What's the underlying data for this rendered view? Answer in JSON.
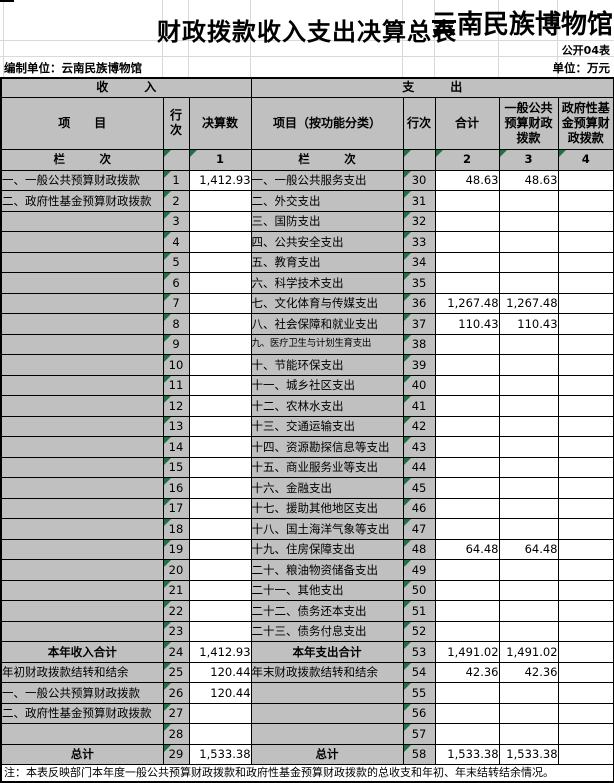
{
  "header": {
    "title": "财政拨款收入支出决算总表",
    "watermark": "云南民族博物馆",
    "form_no": "公开04表",
    "prepared_by": "编制单位：云南民族博物馆",
    "unit": "单位：万元"
  },
  "table": {
    "income_header": "收　　　入",
    "expenditure_header": "支　　　出",
    "columns": [
      "项　　目",
      "行次",
      "决算数",
      "项目（按功能分类）",
      "行次",
      "合计",
      "一般公共预算财政拨款",
      "政府性基金预算财政拨款"
    ],
    "lanci_left": "栏　　　次",
    "lanci_right": "栏　　　次",
    "col_nums": [
      "1",
      "2",
      "3",
      "4"
    ]
  },
  "rows": [
    {
      "left_label": "一、一般公共预算财政拨款",
      "left_no": "1",
      "left_val": "1,412.93",
      "right_label": "一、一般公共服务支出",
      "right_no": "30",
      "val_total": "48.63",
      "val_general": "48.63",
      "val_gov": ""
    },
    {
      "left_label": "二、政府性基金预算财政拨款",
      "left_no": "2",
      "left_val": "",
      "right_label": "二、外交支出",
      "right_no": "31",
      "val_total": "",
      "val_general": "",
      "val_gov": ""
    },
    {
      "left_label": "",
      "left_no": "3",
      "left_val": "",
      "right_label": "三、国防支出",
      "right_no": "32",
      "val_total": "",
      "val_general": "",
      "val_gov": ""
    },
    {
      "left_label": "",
      "left_no": "4",
      "left_val": "",
      "right_label": "四、公共安全支出",
      "right_no": "33",
      "val_total": "",
      "val_general": "",
      "val_gov": ""
    },
    {
      "left_label": "",
      "left_no": "5",
      "left_val": "",
      "right_label": "五、教育支出",
      "right_no": "34",
      "val_total": "",
      "val_general": "",
      "val_gov": ""
    },
    {
      "left_label": "",
      "left_no": "6",
      "left_val": "",
      "right_label": "六、科学技术支出",
      "right_no": "35",
      "val_total": "",
      "val_general": "",
      "val_gov": ""
    },
    {
      "left_label": "",
      "left_no": "7",
      "left_val": "",
      "right_label": "七、文化体育与传媒支出",
      "right_no": "36",
      "val_total": "1,267.48",
      "val_general": "1,267.48",
      "val_gov": ""
    },
    {
      "left_label": "",
      "left_no": "8",
      "left_val": "",
      "right_label": "八、社会保障和就业支出",
      "right_no": "37",
      "val_total": "110.43",
      "val_general": "110.43",
      "val_gov": ""
    },
    {
      "left_label": "",
      "left_no": "9",
      "left_val": "",
      "right_label": "九、医疗卫生与计划生育支出",
      "right_no": "38",
      "val_total": "",
      "val_general": "",
      "val_gov": "",
      "small_right": true
    },
    {
      "left_label": "",
      "left_no": "10",
      "left_val": "",
      "right_label": "十、节能环保支出",
      "right_no": "39",
      "val_total": "",
      "val_general": "",
      "val_gov": ""
    },
    {
      "left_label": "",
      "left_no": "11",
      "left_val": "",
      "right_label": "十一、城乡社区支出",
      "right_no": "40",
      "val_total": "",
      "val_general": "",
      "val_gov": ""
    },
    {
      "left_label": "",
      "left_no": "12",
      "left_val": "",
      "right_label": "十二、农林水支出",
      "right_no": "41",
      "val_total": "",
      "val_general": "",
      "val_gov": ""
    },
    {
      "left_label": "",
      "left_no": "13",
      "left_val": "",
      "right_label": "十三、交通运输支出",
      "right_no": "42",
      "val_total": "",
      "val_general": "",
      "val_gov": ""
    },
    {
      "left_label": "",
      "left_no": "14",
      "left_val": "",
      "right_label": "十四、资源勘探信息等支出",
      "right_no": "43",
      "val_total": "",
      "val_general": "",
      "val_gov": ""
    },
    {
      "left_label": "",
      "left_no": "15",
      "left_val": "",
      "right_label": "十五、商业服务业等支出",
      "right_no": "44",
      "val_total": "",
      "val_general": "",
      "val_gov": ""
    },
    {
      "left_label": "",
      "left_no": "16",
      "left_val": "",
      "right_label": "十六、金融支出",
      "right_no": "45",
      "val_total": "",
      "val_general": "",
      "val_gov": ""
    },
    {
      "left_label": "",
      "left_no": "17",
      "left_val": "",
      "right_label": "十七、援助其他地区支出",
      "right_no": "46",
      "val_total": "",
      "val_general": "",
      "val_gov": ""
    },
    {
      "left_label": "",
      "left_no": "18",
      "left_val": "",
      "right_label": "十八、国土海洋气象等支出",
      "right_no": "47",
      "val_total": "",
      "val_general": "",
      "val_gov": ""
    },
    {
      "left_label": "",
      "left_no": "19",
      "left_val": "",
      "right_label": "十九、住房保障支出",
      "right_no": "48",
      "val_total": "64.48",
      "val_general": "64.48",
      "val_gov": ""
    },
    {
      "left_label": "",
      "left_no": "20",
      "left_val": "",
      "right_label": "二十、粮油物资储备支出",
      "right_no": "49",
      "val_total": "",
      "val_general": "",
      "val_gov": ""
    },
    {
      "left_label": "",
      "left_no": "21",
      "left_val": "",
      "right_label": "二十一、其他支出",
      "right_no": "50",
      "val_total": "",
      "val_general": "",
      "val_gov": ""
    },
    {
      "left_label": "",
      "left_no": "22",
      "left_val": "",
      "right_label": "二十二、债务还本支出",
      "right_no": "51",
      "val_total": "",
      "val_general": "",
      "val_gov": ""
    },
    {
      "left_label": "",
      "left_no": "23",
      "left_val": "",
      "right_label": "二十三、债务付息支出",
      "right_no": "52",
      "val_total": "",
      "val_general": "",
      "val_gov": ""
    },
    {
      "left_label": "本年收入合计",
      "left_no": "24",
      "left_val": "1,412.93",
      "right_label": "本年支出合计",
      "right_no": "53",
      "val_total": "1,491.02",
      "val_general": "1,491.02",
      "val_gov": "",
      "total_row": true
    },
    {
      "left_label": "年初财政拨款结转和结余",
      "left_no": "25",
      "left_val": "120.44",
      "right_label": "年末财政拨款结转和结余",
      "right_no": "54",
      "val_total": "42.36",
      "val_general": "42.36",
      "val_gov": ""
    },
    {
      "left_label": "一、一般公共预算财政拨款",
      "left_no": "26",
      "left_val": "120.44",
      "right_label": "",
      "right_no": "55",
      "val_total": "",
      "val_general": "",
      "val_gov": ""
    },
    {
      "left_label": "二、政府性基金预算财政拨款",
      "left_no": "27",
      "left_val": "",
      "right_label": "",
      "right_no": "56",
      "val_total": "",
      "val_general": "",
      "val_gov": ""
    },
    {
      "left_label": "",
      "left_no": "28",
      "left_val": "",
      "right_label": "",
      "right_no": "57",
      "val_total": "",
      "val_general": "",
      "val_gov": ""
    },
    {
      "left_label": "总计",
      "left_no": "29",
      "left_val": "1,533.38",
      "right_label": "总计",
      "right_no": "58",
      "val_total": "1,533.38",
      "val_general": "1,533.38",
      "val_gov": "",
      "total_row": true
    }
  ],
  "note": "注：本表反映部门本年度一般公共预算财政拨款和政府性基金预算财政拨款的总收支和年初、年末结转结余情况。",
  "colors": {
    "cell_bg": "#c0c0c0",
    "triangle_green": "#1e7145",
    "border": "#000000"
  }
}
